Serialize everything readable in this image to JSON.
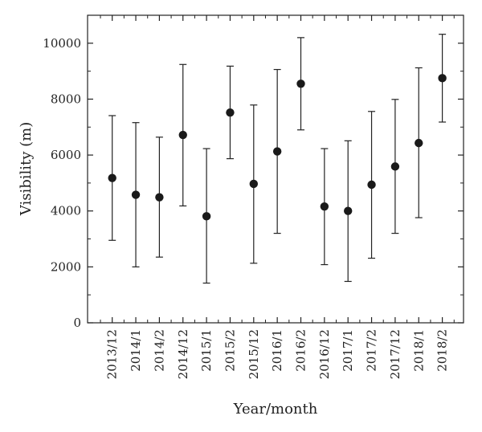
{
  "chart_data": {
    "type": "scatter",
    "title": "",
    "xlabel": "Year/month",
    "ylabel": "Visibility (m)",
    "ylim": [
      0,
      11000
    ],
    "yticks": [
      0,
      2000,
      4000,
      6000,
      8000,
      10000
    ],
    "grid": false,
    "legend": "none",
    "marker_color": "#1a1a1a",
    "categories": [
      "2013/12",
      "2014/1",
      "2014/2",
      "2014/12",
      "2015/1",
      "2015/2",
      "2015/12",
      "2016/1",
      "2016/2",
      "2016/12",
      "2017/1",
      "2017/2",
      "2017/12",
      "2018/1",
      "2018/2"
    ],
    "series": [
      {
        "values": [
          5180,
          4580,
          4490,
          6720,
          3810,
          7520,
          4970,
          6130,
          8550,
          4160,
          4000,
          4940,
          5590,
          6430,
          8750
        ],
        "error_low": [
          2950,
          2000,
          2350,
          4180,
          1420,
          5870,
          2130,
          3200,
          6900,
          2080,
          1480,
          2310,
          3200,
          3760,
          7180
        ],
        "error_high": [
          7410,
          7160,
          6640,
          9240,
          6230,
          9180,
          7790,
          9060,
          10200,
          6230,
          6510,
          7560,
          7990,
          9120,
          10320
        ]
      }
    ]
  }
}
